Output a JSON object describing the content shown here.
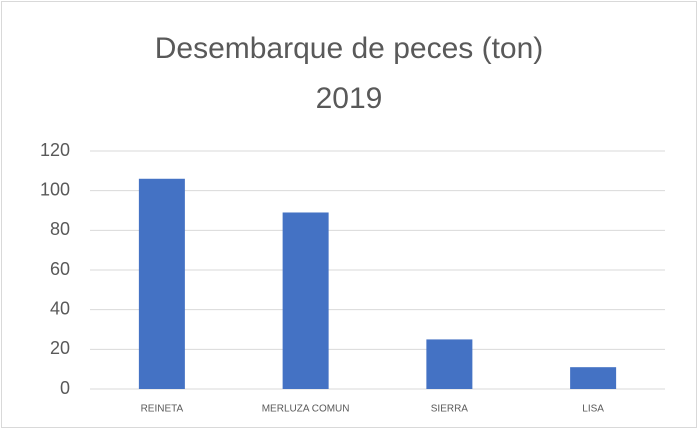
{
  "chart_data": {
    "type": "bar",
    "title": "Desembarque de peces (ton) 2019",
    "categories": [
      "REINETA",
      "MERLUZA COMUN",
      "SIERRA",
      "LISA"
    ],
    "values": [
      106,
      89,
      25,
      11
    ],
    "color": "#4472c4",
    "ylim": [
      0,
      120
    ],
    "yticks": [
      0,
      20,
      40,
      60,
      80,
      100,
      120
    ],
    "grid": true
  }
}
